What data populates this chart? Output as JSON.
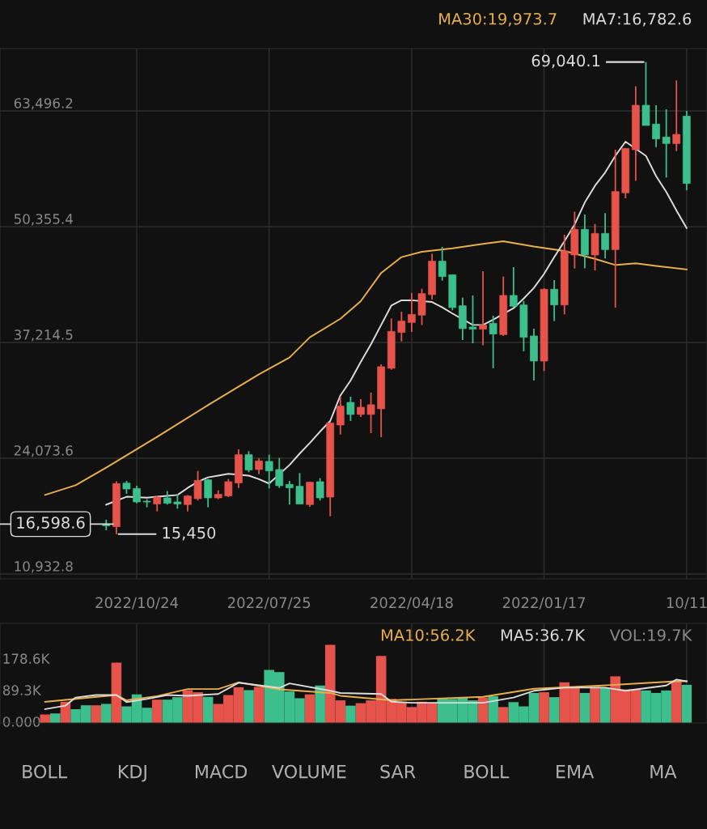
{
  "chart_data": [
    {
      "type": "candlestick",
      "x": [
        "2021-10-11",
        "2021-10-18",
        "2021-10-25",
        "2021-11-01",
        "2021-11-08",
        "2021-11-15",
        "2021-11-22",
        "2021-11-29",
        "2021-12-06",
        "2021-12-13",
        "2021-12-20",
        "2021-12-27",
        "2022-01-03",
        "2022-01-10",
        "2022-01-17",
        "2022-01-24",
        "2022-01-31",
        "2022-02-07",
        "2022-02-14",
        "2022-02-21",
        "2022-02-28",
        "2022-03-07",
        "2022-03-14",
        "2022-03-21",
        "2022-03-28",
        "2022-04-04",
        "2022-04-11",
        "2022-04-18",
        "2022-04-25",
        "2022-05-02",
        "2022-05-09",
        "2022-05-16",
        "2022-05-23",
        "2022-05-30",
        "2022-06-06",
        "2022-06-13",
        "2022-06-20",
        "2022-06-27",
        "2022-07-04",
        "2022-07-11",
        "2022-07-18",
        "2022-07-25",
        "2022-08-01",
        "2022-08-08",
        "2022-08-15",
        "2022-08-22",
        "2022-08-29",
        "2022-09-05",
        "2022-09-12",
        "2022-09-19",
        "2022-09-26",
        "2022-10-03",
        "2022-10-10",
        "2022-10-17",
        "2022-10-24",
        "2022-10-31",
        "2022-11-07",
        "2022-11-14"
      ],
      "ohlc": [
        [
          55260,
          63500,
          54500,
          62910
        ],
        [
          60830,
          66960,
          58930,
          59790
        ],
        [
          59790,
          63680,
          55930,
          60530
        ],
        [
          60310,
          64140,
          59390,
          62000
        ],
        [
          61840,
          69040.1,
          61840,
          64140
        ],
        [
          64140,
          66280,
          55560,
          59090
        ],
        [
          59240,
          59240,
          53570,
          54190
        ],
        [
          54340,
          59090,
          41170,
          47750
        ],
        [
          47750,
          51890,
          46740,
          49590
        ],
        [
          49590,
          50660,
          45390,
          47140
        ],
        [
          47140,
          51740,
          45610,
          50050
        ],
        [
          50050,
          52040,
          45610,
          47140
        ],
        [
          47600,
          49440,
          40400,
          41470
        ],
        [
          41470,
          44290,
          39640,
          43250
        ],
        [
          43250,
          43370,
          33970,
          35100
        ],
        [
          35100,
          38780,
          32900,
          37950
        ],
        [
          37800,
          41930,
          36210,
          41470
        ],
        [
          41320,
          45760,
          41170,
          42550
        ],
        [
          42550,
          44690,
          37950,
          38100
        ],
        [
          38170,
          40250,
          34280,
          39390
        ],
        [
          39180,
          45300,
          36880,
          38720
        ],
        [
          38720,
          42550,
          37120,
          38960
        ],
        [
          38780,
          42300,
          37490,
          41380
        ],
        [
          41170,
          44900,
          40860,
          44900
        ],
        [
          44690,
          48060,
          44230,
          46440
        ],
        [
          46440,
          47290,
          42090,
          42640
        ],
        [
          42760,
          43310,
          39180,
          40310
        ],
        [
          40400,
          42850,
          38410,
          39480
        ],
        [
          39640,
          40710,
          37340,
          38350
        ],
        [
          38470,
          39940,
          34120,
          34280
        ],
        [
          34460,
          34730,
          26460,
          29680
        ],
        [
          30140,
          31520,
          26920,
          29040
        ],
        [
          29860,
          30780,
          28760,
          29040
        ],
        [
          29040,
          31060,
          28300,
          30410
        ],
        [
          29990,
          31060,
          26770,
          27840
        ],
        [
          28060,
          28150,
          17490,
          19660
        ],
        [
          19570,
          21810,
          19270,
          21410
        ],
        [
          21350,
          21410,
          18560,
          18810
        ],
        [
          18870,
          22390,
          18870,
          20890
        ],
        [
          20710,
          21500,
          18810,
          21100
        ],
        [
          20950,
          24100,
          20700,
          22790
        ],
        [
          22630,
          24470,
          20640,
          23710
        ],
        [
          23770,
          24070,
          22270,
          22790
        ],
        [
          22730,
          24870,
          22480,
          24470
        ],
        [
          24470,
          25090,
          20700,
          21260
        ],
        [
          21410,
          21720,
          19660,
          19790
        ],
        [
          19970,
          20430,
          19420,
          19570
        ],
        [
          19570,
          21710,
          18500,
          21620
        ],
        [
          21560,
          22630,
          19270,
          19480
        ],
        [
          19790,
          19880,
          18040,
          18810
        ],
        [
          18870,
          20030,
          18350,
          19110
        ],
        [
          18960,
          20340,
          18810,
          19570
        ],
        [
          19660,
          19790,
          18040,
          18870
        ],
        [
          19100,
          19420,
          18500,
          19200
        ],
        [
          19110,
          20950,
          18960,
          20640
        ],
        [
          20580,
          21500,
          20030,
          21250
        ],
        [
          21200,
          21450,
          15450,
          16300
        ],
        [
          16400,
          17100,
          15900,
          16598.6
        ]
      ],
      "colors": [
        "#3cbf8c",
        "#e5534b",
        "#3cbf8c",
        "#3cbf8c",
        "#3cbf8c",
        "#e5534b",
        "#e5534b",
        "#e5534b",
        "#3cbf8c",
        "#e5534b",
        "#3cbf8c",
        "#e5534b",
        "#e5534b",
        "#3cbf8c",
        "#e5534b",
        "#3cbf8c",
        "#3cbf8c",
        "#3cbf8c",
        "#e5534b",
        "#3cbf8c",
        "#e5534b",
        "#3cbf8c",
        "#3cbf8c",
        "#3cbf8c",
        "#3cbf8c",
        "#e5534b",
        "#e5534b",
        "#e5534b",
        "#e5534b",
        "#e5534b",
        "#e5534b",
        "#e5534b",
        "#e5534b",
        "#3cbf8c",
        "#e5534b",
        "#e5534b",
        "#3cbf8c",
        "#e5534b",
        "#3cbf8c",
        "#3cbf8c",
        "#3cbf8c",
        "#3cbf8c",
        "#e5534b",
        "#3cbf8c",
        "#e5534b",
        "#e5534b",
        "#e5534b",
        "#3cbf8c",
        "#e5534b",
        "#e5534b",
        "#3cbf8c",
        "#3cbf8c",
        "#e5534b",
        "#3cbf8c",
        "#3cbf8c",
        "#3cbf8c",
        "#e5534b",
        "#3cbf8c"
      ],
      "series": [
        {
          "type": "line",
          "name": "MA30:19,973.7",
          "color": "#e8b04a",
          "x": [
            "2021-10-11",
            "2021-11-01",
            "2021-11-15",
            "2021-11-29",
            "2021-12-13",
            "2022-01-03",
            "2022-01-24",
            "2022-02-14",
            "2022-02-28",
            "2022-03-21",
            "2022-04-11",
            "2022-04-25",
            "2022-05-09",
            "2022-05-23",
            "2022-06-06",
            "2022-06-27",
            "2022-07-11",
            "2022-08-01",
            "2022-09-05",
            "2022-10-10",
            "2022-11-14",
            "2022-12-05",
            "2022-12-26"
          ],
          "values": [
            45500,
            45900,
            46200,
            46000,
            46700,
            47600,
            48100,
            48700,
            48400,
            47900,
            47500,
            46900,
            45100,
            41900,
            39900,
            37800,
            35500,
            33600,
            30100,
            26500,
            23000,
            21000,
            19900
          ]
        },
        {
          "type": "line",
          "name": "MA7:16,782.6",
          "color": "#dcdcdc",
          "x": [
            "2021-10-11",
            "2021-10-18",
            "2021-10-25",
            "2021-11-01",
            "2021-11-08",
            "2021-11-22",
            "2021-11-29",
            "2021-12-06",
            "2021-12-13",
            "2021-12-20",
            "2021-12-27",
            "2022-01-03",
            "2022-01-10",
            "2022-01-17",
            "2022-01-24",
            "2022-01-31",
            "2022-02-07",
            "2022-02-21",
            "2022-02-28",
            "2022-03-07",
            "2022-03-21",
            "2022-03-28",
            "2022-04-04",
            "2022-04-18",
            "2022-04-25",
            "2022-05-02",
            "2022-05-09",
            "2022-05-16",
            "2022-05-23",
            "2022-05-30",
            "2022-06-06",
            "2022-06-13",
            "2022-06-20",
            "2022-06-27",
            "2022-07-04",
            "2022-07-11",
            "2022-07-25",
            "2022-08-01",
            "2022-08-08",
            "2022-08-22",
            "2022-08-29",
            "2022-09-05",
            "2022-09-12",
            "2022-09-19",
            "2022-09-26",
            "2022-10-03",
            "2022-10-10",
            "2022-10-17",
            "2022-10-31",
            "2022-11-14"
          ],
          "values": [
            50200,
            52200,
            54300,
            56100,
            58400,
            60000,
            58400,
            56500,
            55000,
            53100,
            50600,
            48700,
            46900,
            45000,
            43400,
            42200,
            41100,
            39800,
            39200,
            39200,
            40500,
            41200,
            41800,
            42000,
            42000,
            41400,
            39200,
            37000,
            35000,
            32900,
            31200,
            28300,
            27100,
            25800,
            24600,
            23300,
            21200,
            21700,
            22100,
            22300,
            22100,
            21900,
            21400,
            20700,
            19900,
            19800,
            19700,
            19600,
            19700,
            18800
          ]
        }
      ],
      "xlim": [
        "2023-01-26",
        "2021-09-27"
      ],
      "xticks": [
        {
          "value": "2022-10-24",
          "label": "2022/10/24"
        },
        {
          "value": "2022-07-25",
          "label": "2022/07/25"
        },
        {
          "value": "2022-04-18",
          "label": "2022/04/18"
        },
        {
          "value": "2022-01-17",
          "label": "2022/01/17"
        },
        {
          "value": "2021-10-11",
          "label": "10/11"
        }
      ],
      "ylim": [
        10380,
        70570
      ],
      "yticks": [
        {
          "value": 10932.8,
          "label": "10,932.8"
        },
        {
          "value": 24073.6,
          "label": "24,073.6"
        },
        {
          "value": 37214.5,
          "label": "37,214.5"
        },
        {
          "value": 50355.4,
          "label": "50,355.4"
        },
        {
          "value": 63496.2,
          "label": "63,496.2"
        }
      ],
      "grid": true,
      "legend": "top right",
      "ref_lines": [
        {
          "axis": "y",
          "value": 16598.6,
          "label": "16,598.6"
        }
      ],
      "annotations": [
        {
          "text": "69,040.1",
          "x": "2021-11-08",
          "y": 69040.1
        },
        {
          "text": "15,450",
          "x": "2022-11-07",
          "y": 15450
        }
      ]
    },
    {
      "type": "bar",
      "series": [
        {
          "type": "line",
          "name": "MA10:56.2K",
          "color": "#e8b04a",
          "x": [
            "2021-10-11",
            "2021-10-18",
            "2021-12-13",
            "2022-01-24",
            "2022-02-28",
            "2022-05-02",
            "2022-06-06",
            "2022-06-13",
            "2022-07-18",
            "2022-08-15",
            "2022-08-29",
            "2022-09-19",
            "2022-10-10",
            "2022-10-31",
            "2022-11-07",
            "2022-12-26"
          ],
          "values": [
            118,
            118,
            105,
            97,
            74,
            64,
            77,
            85,
            95,
            115,
            96,
            96,
            76,
            64,
            79,
            60
          ]
        },
        {
          "type": "line",
          "name": "MA5:36.7K",
          "color": "#dcdcdc",
          "x": [
            "2021-10-11",
            "2021-10-18",
            "2021-10-25",
            "2021-11-22",
            "2021-12-06",
            "2022-01-03",
            "2022-01-24",
            "2022-02-07",
            "2022-02-28",
            "2022-04-18",
            "2022-05-02",
            "2022-05-09",
            "2022-06-06",
            "2022-06-13",
            "2022-07-11",
            "2022-07-18",
            "2022-08-15",
            "2022-08-29",
            "2022-09-19",
            "2022-10-03",
            "2022-10-17",
            "2022-10-31",
            "2022-11-07",
            "2022-11-21",
            "2022-12-05",
            "2022-12-12",
            "2022-12-26"
          ],
          "values": [
            118,
            123,
            106,
            91,
            100,
            100,
            91,
            72,
            57,
            57,
            60,
            82,
            85,
            91,
            112,
            99,
            114,
            82,
            77,
            79,
            68,
            59,
            79,
            79,
            72,
            49,
            39
          ]
        },
        {
          "name": "VOL:19.7K",
          "x": [
            "2021-10-11",
            "2021-10-18",
            "2021-10-25",
            "2021-11-01",
            "2021-11-08",
            "2021-11-15",
            "2021-11-22",
            "2021-11-29",
            "2021-12-06",
            "2021-12-13",
            "2021-12-20",
            "2021-12-27",
            "2022-01-03",
            "2022-01-10",
            "2022-01-17",
            "2022-01-24",
            "2022-01-31",
            "2022-02-07",
            "2022-02-14",
            "2022-02-21",
            "2022-02-28",
            "2022-03-07",
            "2022-03-14",
            "2022-03-21",
            "2022-03-28",
            "2022-04-04",
            "2022-04-11",
            "2022-04-18",
            "2022-04-25",
            "2022-05-02",
            "2022-05-09",
            "2022-05-16",
            "2022-05-23",
            "2022-05-30",
            "2022-06-06",
            "2022-06-13",
            "2022-06-20",
            "2022-06-27",
            "2022-07-04",
            "2022-07-11",
            "2022-07-18",
            "2022-07-25",
            "2022-08-01",
            "2022-08-08",
            "2022-08-15",
            "2022-08-22",
            "2022-08-29",
            "2022-09-05",
            "2022-09-12",
            "2022-09-19",
            "2022-09-26",
            "2022-10-03",
            "2022-10-10",
            "2022-10-17",
            "2022-10-24",
            "2022-10-31",
            "2022-11-07",
            "2022-11-14",
            "2022-11-21",
            "2022-11-28",
            "2022-12-05",
            "2022-12-12",
            "2022-12-19",
            "2022-12-26"
          ],
          "values": [
            108,
            120,
            92,
            85,
            92,
            95,
            95,
            132,
            99,
            102,
            85,
            99,
            115,
            73,
            87,
            85,
            47,
            59,
            45,
            76,
            72,
            64,
            72,
            68,
            70,
            56,
            60,
            45,
            60,
            68,
            190,
            64,
            56,
            49,
            64,
            221,
            106,
            81,
            70,
            89,
            144,
            150,
            102,
            93,
            101,
            79,
            54,
            74,
            87,
            93,
            73,
            66,
            66,
            43,
            81,
            47,
            171,
            54,
            50,
            50,
            39,
            60,
            27,
            24
          ],
          "colors": [
            "#3cbf8c",
            "#e5534b",
            "#3cbf8c",
            "#3cbf8c",
            "#3cbf8c",
            "#e5534b",
            "#e5534b",
            "#e5534b",
            "#3cbf8c",
            "#e5534b",
            "#3cbf8c",
            "#e5534b",
            "#e5534b",
            "#3cbf8c",
            "#e5534b",
            "#3cbf8c",
            "#3cbf8c",
            "#3cbf8c",
            "#e5534b",
            "#3cbf8c",
            "#e5534b",
            "#3cbf8c",
            "#3cbf8c",
            "#3cbf8c",
            "#3cbf8c",
            "#e5534b",
            "#e5534b",
            "#e5534b",
            "#e5534b",
            "#e5534b",
            "#e5534b",
            "#e5534b",
            "#e5534b",
            "#3cbf8c",
            "#e5534b",
            "#e5534b",
            "#3cbf8c",
            "#e5534b",
            "#3cbf8c",
            "#3cbf8c",
            "#3cbf8c",
            "#3cbf8c",
            "#e5534b",
            "#3cbf8c",
            "#e5534b",
            "#e5534b",
            "#e5534b",
            "#3cbf8c",
            "#e5534b",
            "#e5534b",
            "#3cbf8c",
            "#3cbf8c",
            "#e5534b",
            "#3cbf8c",
            "#3cbf8c",
            "#3cbf8c",
            "#e5534b",
            "#3cbf8c",
            "#e5534b",
            "#3cbf8c",
            "#3cbf8c",
            "#e5534b",
            "#3cbf8c",
            "#e5534b"
          ]
        }
      ],
      "xlim": [
        "2023-01-26",
        "2021-09-27"
      ],
      "xticks": [
        {
          "value": "2022-10-24",
          "label": null
        },
        {
          "value": "2022-07-25",
          "label": null
        },
        {
          "value": "2022-04-18",
          "label": null
        },
        {
          "value": "2022-01-17",
          "label": null
        },
        {
          "value": "2021-10-11",
          "label": null
        }
      ],
      "ylim": [
        0,
        282
      ],
      "yticks": [
        {
          "value": 0,
          "label": "0.000"
        },
        {
          "value": 89.3,
          "label": "89.3K"
        },
        {
          "value": 178.6,
          "label": "178.6K"
        }
      ],
      "grid": "x",
      "legend": "top right",
      "tick_labels": "y",
      "annotations": [
        "BOLL",
        "KDJ",
        "MACD",
        "VOLUME",
        "SAR",
        "BOLL",
        "EMA",
        "MA"
      ]
    }
  ]
}
